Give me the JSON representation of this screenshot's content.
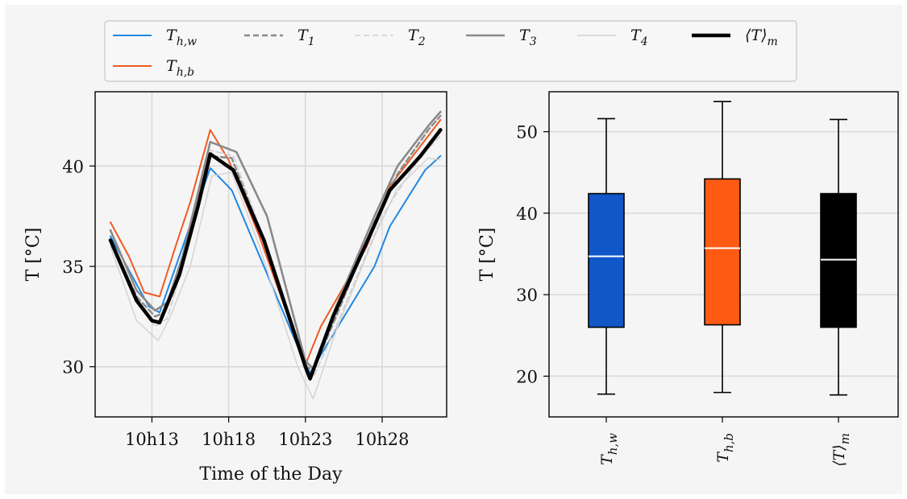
{
  "legend": {
    "position": "top",
    "entries": [
      {
        "key": "Th_w",
        "main": "T",
        "sub": "h,w",
        "color": "#1f88e5",
        "style": "solid",
        "width": 2
      },
      {
        "key": "T1",
        "main": "T",
        "sub": "1",
        "color": "#8a8a8a",
        "style": "dashed",
        "width": 2.4
      },
      {
        "key": "T2",
        "main": "T",
        "sub": "2",
        "color": "#cfcfcf",
        "style": "dashed",
        "width": 1.6
      },
      {
        "key": "T3",
        "main": "T",
        "sub": "3",
        "color": "#8a8a8a",
        "style": "solid",
        "width": 2.6
      },
      {
        "key": "T4",
        "main": "T",
        "sub": "4",
        "color": "#d2d2d2",
        "style": "solid",
        "width": 1.4
      },
      {
        "key": "Tm",
        "main": "⟨T⟩",
        "sub": "m",
        "color": "#000000",
        "style": "solid",
        "width": 4.5
      },
      {
        "key": "Th_b",
        "main": "T",
        "sub": "h,b",
        "color": "#f05a23",
        "style": "solid",
        "width": 2
      }
    ]
  },
  "chart_data": [
    {
      "type": "line",
      "xlabel": "Time of the Day",
      "ylabel": "T [°C]",
      "xlim": [
        9.3,
        32.2
      ],
      "ylim": [
        27.5,
        43.7
      ],
      "xticks": [
        13,
        18,
        23,
        28
      ],
      "xtick_labels": [
        "10h13",
        "10h18",
        "10h23",
        "10h28"
      ],
      "yticks": [
        30,
        35,
        40
      ],
      "ytick_labels": [
        "30",
        "35",
        "40"
      ],
      "grid": true,
      "x_unit": "minutes after 10h00",
      "series": [
        {
          "key": "Th_w",
          "x": [
            10.3,
            12.8,
            13.5,
            16.8,
            18.2,
            23.0,
            23.3,
            27.5,
            28.5,
            30.8,
            31.8
          ],
          "y": [
            36.5,
            33.0,
            32.7,
            39.9,
            38.8,
            30.1,
            29.7,
            35.0,
            37.0,
            39.8,
            40.5
          ]
        },
        {
          "key": "Th_b",
          "x": [
            10.3,
            11.5,
            12.5,
            13.5,
            14.5,
            15.5,
            16.8,
            18.0,
            20.0,
            23.0,
            24.0,
            27.0,
            28.5,
            31.0,
            31.8
          ],
          "y": [
            37.2,
            35.5,
            33.7,
            33.5,
            35.9,
            38.2,
            41.8,
            40.3,
            36.5,
            30.1,
            32.0,
            36.0,
            39.0,
            41.5,
            42.3
          ]
        },
        {
          "key": "T1",
          "x": [
            10.3,
            12.0,
            13.2,
            13.8,
            15.0,
            16.7,
            18.2,
            20.2,
            23.1,
            23.5,
            25.0,
            27.5,
            29.0,
            31.0,
            31.8
          ],
          "y": [
            36.3,
            33.5,
            32.5,
            32.7,
            35.2,
            40.5,
            40.4,
            36.5,
            30.0,
            29.8,
            32.5,
            37.2,
            39.6,
            41.8,
            42.5
          ]
        },
        {
          "key": "T2",
          "x": [
            10.3,
            12.0,
            13.2,
            14.0,
            15.0,
            16.7,
            18.3,
            20.5,
            23.2,
            23.6,
            25.0,
            28.0,
            30.5,
            31.8
          ],
          "y": [
            36.2,
            33.2,
            32.0,
            32.4,
            35.0,
            40.8,
            40.5,
            36.0,
            29.5,
            29.6,
            32.0,
            37.5,
            40.5,
            41.5
          ]
        },
        {
          "key": "T3",
          "x": [
            10.3,
            12.0,
            13.2,
            14.0,
            15.0,
            16.8,
            18.5,
            20.5,
            23.0,
            23.5,
            25.0,
            27.5,
            29.0,
            31.0,
            31.8
          ],
          "y": [
            36.8,
            33.8,
            32.8,
            33.2,
            35.5,
            41.2,
            40.7,
            37.5,
            30.3,
            29.9,
            33.0,
            37.5,
            40.0,
            42.0,
            42.7
          ]
        },
        {
          "key": "T4",
          "x": [
            10.3,
            12.0,
            13.4,
            14.2,
            15.5,
            16.9,
            18.2,
            20.0,
            22.5,
            23.5,
            25.0,
            27.5,
            29.0,
            31.0,
            31.8
          ],
          "y": [
            36.0,
            32.3,
            31.3,
            32.5,
            35.0,
            39.5,
            39.7,
            36.0,
            30.0,
            28.4,
            31.8,
            36.5,
            38.9,
            40.4,
            40.3
          ]
        },
        {
          "key": "Tm",
          "x": [
            10.3,
            12.0,
            13.0,
            13.5,
            14.8,
            16.0,
            16.8,
            18.3,
            20.3,
            23.0,
            23.3,
            24.8,
            27.0,
            28.5,
            30.5,
            31.8
          ],
          "y": [
            36.3,
            33.3,
            32.3,
            32.2,
            34.6,
            38.0,
            40.6,
            39.8,
            36.3,
            30.0,
            29.4,
            32.5,
            36.2,
            38.8,
            40.5,
            41.8
          ]
        }
      ]
    },
    {
      "type": "box",
      "xlabel": "",
      "ylabel": "T [°C]",
      "ylim": [
        15,
        54.9
      ],
      "yticks": [
        20,
        30,
        40,
        50
      ],
      "ytick_labels": [
        "20",
        "30",
        "40",
        "50"
      ],
      "grid": "y",
      "boxes": [
        {
          "label_main": "T",
          "label_sub": "h,w",
          "whisker_low": 17.8,
          "q1": 26.0,
          "median": 34.7,
          "q3": 42.4,
          "whisker_high": 51.6,
          "color": "#1157c8",
          "median_color": "#ffffff"
        },
        {
          "label_main": "T",
          "label_sub": "h,b",
          "whisker_low": 18.0,
          "q1": 26.3,
          "median": 35.7,
          "q3": 44.2,
          "whisker_high": 53.7,
          "color": "#ff5a14",
          "median_color": "#ffffff"
        },
        {
          "label_main": "⟨T⟩",
          "label_sub": "m",
          "whisker_low": 17.7,
          "q1": 26.0,
          "median": 34.3,
          "q3": 42.4,
          "whisker_high": 51.5,
          "color": "#000000",
          "median_color": "#ffffff"
        }
      ]
    }
  ]
}
